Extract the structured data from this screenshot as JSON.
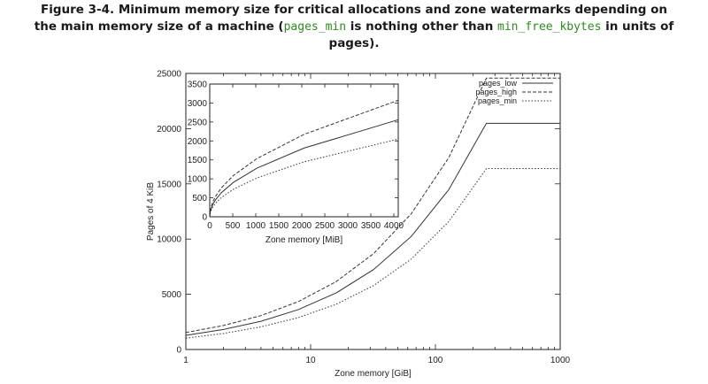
{
  "caption": {
    "line1": "Figure 3-4. Minimum memory size for critical allocations and zone watermarks depending on",
    "line2_a": "the main memory size of a machine (",
    "line2_code1": "pages_min",
    "line2_b": " is nothing other than ",
    "line2_code2": "min_free_kbytes",
    "line2_c": " in units of",
    "line3": "pages)."
  },
  "chart_data": [
    {
      "type": "line",
      "title": "",
      "xlabel": "Zone memory [GiB]",
      "ylabel": "Pages of 4 KiB",
      "xscale": "log",
      "xlim": [
        1,
        1000
      ],
      "ylim": [
        0,
        25000
      ],
      "x_ticks": [
        "1",
        "10",
        "100",
        "1000"
      ],
      "y_ticks": [
        "0",
        "5000",
        "10000",
        "15000",
        "20000",
        "25000"
      ],
      "legend": "top-right",
      "x": [
        1,
        2,
        4,
        8,
        16,
        32,
        64,
        128,
        256,
        512,
        1000
      ],
      "series": [
        {
          "name": "pages_low",
          "style": "solid",
          "values": [
            1280,
            1810,
            2560,
            3620,
            5120,
            7240,
            10240,
            14480,
            20480,
            20480,
            20480
          ]
        },
        {
          "name": "pages_high",
          "style": "dashed",
          "values": [
            1536,
            2172,
            3072,
            4344,
            6144,
            8688,
            12288,
            17376,
            24576,
            24576,
            24576
          ]
        },
        {
          "name": "pages_min",
          "style": "dotted",
          "values": [
            1024,
            1448,
            2048,
            2896,
            4096,
            5792,
            8192,
            11584,
            16384,
            16384,
            16384
          ]
        }
      ]
    },
    {
      "type": "line",
      "title": "",
      "xlabel": "Zone memory [MiB]",
      "ylabel": "",
      "xlim": [
        0,
        4096
      ],
      "ylim": [
        0,
        3500
      ],
      "x_ticks": [
        "0",
        "500",
        "1000",
        "1500",
        "2000",
        "2500",
        "3000",
        "3500",
        "4000"
      ],
      "y_ticks": [
        "0",
        "500",
        "1000",
        "1500",
        "2000",
        "2500",
        "3000",
        "3500"
      ],
      "x": [
        0,
        16,
        64,
        128,
        256,
        512,
        1024,
        2048,
        4096
      ],
      "series": [
        {
          "name": "pages_low",
          "style": "solid",
          "values": [
            0,
            160,
            320,
            452,
            640,
            905,
            1280,
            1810,
            2560
          ]
        },
        {
          "name": "pages_high",
          "style": "dashed",
          "values": [
            0,
            192,
            384,
            543,
            768,
            1086,
            1536,
            2172,
            3072
          ]
        },
        {
          "name": "pages_min",
          "style": "dotted",
          "values": [
            0,
            128,
            256,
            362,
            512,
            724,
            1024,
            1448,
            2048
          ]
        }
      ]
    }
  ]
}
